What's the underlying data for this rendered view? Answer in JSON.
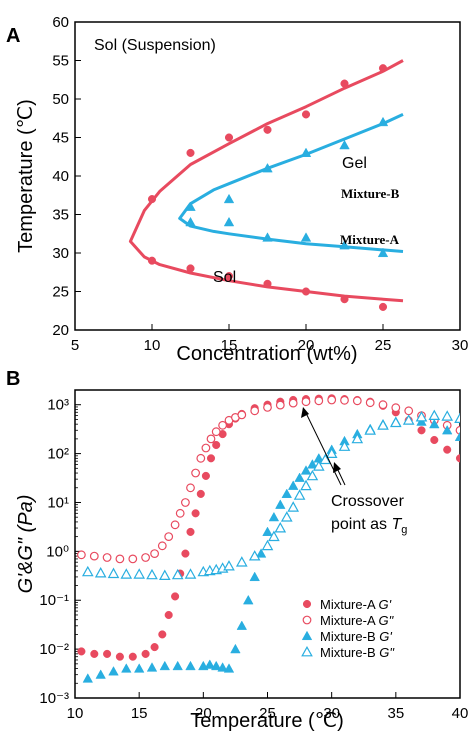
{
  "colors": {
    "mixture_a": "#e84a5f",
    "mixture_b": "#29aee0",
    "axis": "#000000"
  },
  "chart_data": [
    {
      "panel": "A",
      "type": "scatter",
      "xlabel": "Concentration (wt%)",
      "ylabel": "Temperature (℃)",
      "xlim": [
        5,
        30
      ],
      "ylim": [
        20,
        60
      ],
      "xticks": [
        5,
        10,
        15,
        20,
        25,
        30
      ],
      "yticks": [
        20,
        25,
        30,
        35,
        40,
        45,
        50,
        55,
        60
      ],
      "region_labels": {
        "sol_suspension": "Sol (Suspension)",
        "gel": "Gel",
        "sol": "Sol"
      },
      "series": [
        {
          "name": "Mixture-A",
          "marker": "circle",
          "points": [
            [
              10,
              37
            ],
            [
              10,
              29
            ],
            [
              12.5,
              43
            ],
            [
              12.5,
              28
            ],
            [
              15,
              45
            ],
            [
              15,
              27
            ],
            [
              17.5,
              46
            ],
            [
              17.5,
              26
            ],
            [
              20,
              48
            ],
            [
              20,
              25
            ],
            [
              22.5,
              52
            ],
            [
              22.5,
              24
            ],
            [
              25,
              54
            ],
            [
              25,
              23
            ]
          ],
          "fit_upper": [
            [
              8.6,
              31.5
            ],
            [
              9.5,
              35.5
            ],
            [
              10.5,
              38
            ],
            [
              12.5,
              41.5
            ],
            [
              15,
              44.2
            ],
            [
              17.5,
              46.8
            ],
            [
              20,
              49
            ],
            [
              22.5,
              51.4
            ],
            [
              25,
              53.6
            ],
            [
              26.3,
              55
            ]
          ],
          "fit_lower": [
            [
              8.6,
              31.5
            ],
            [
              9.5,
              29.5
            ],
            [
              10.5,
              28.5
            ],
            [
              12.5,
              27.4
            ],
            [
              15,
              26.4
            ],
            [
              17.5,
              25.6
            ],
            [
              20,
              25
            ],
            [
              22.5,
              24.4
            ],
            [
              25,
              24
            ],
            [
              26.3,
              23.8
            ]
          ]
        },
        {
          "name": "Mixture-B",
          "marker": "triangle",
          "points": [
            [
              12.5,
              36
            ],
            [
              12.5,
              34
            ],
            [
              15,
              37
            ],
            [
              15,
              34
            ],
            [
              17.5,
              41
            ],
            [
              17.5,
              32
            ],
            [
              20,
              43
            ],
            [
              20,
              32
            ],
            [
              22.5,
              44
            ],
            [
              22.5,
              31
            ],
            [
              25,
              47
            ],
            [
              25,
              30
            ]
          ],
          "fit_upper": [
            [
              11.8,
              34.5
            ],
            [
              12.5,
              36.4
            ],
            [
              14,
              38.2
            ],
            [
              15,
              39
            ],
            [
              17.5,
              41
            ],
            [
              20,
              42.8
            ],
            [
              22.5,
              44.8
            ],
            [
              25,
              46.8
            ],
            [
              26.3,
              48
            ]
          ],
          "fit_lower": [
            [
              11.8,
              34.5
            ],
            [
              12.5,
              33.5
            ],
            [
              14,
              32.8
            ],
            [
              15,
              32.5
            ],
            [
              17.5,
              31.8
            ],
            [
              20,
              31.2
            ],
            [
              22.5,
              30.8
            ],
            [
              25,
              30.4
            ],
            [
              26.3,
              30.2
            ]
          ]
        }
      ]
    },
    {
      "panel": "B",
      "type": "scatter",
      "xlabel": "Temperature (℃)",
      "ylabel": "G'&G\" (Pa)",
      "yscale": "log",
      "xlim": [
        10,
        40
      ],
      "ylim": [
        0.001,
        2000
      ],
      "xticks": [
        10,
        15,
        20,
        25,
        30,
        35,
        40
      ],
      "ytick_labels": [
        "10⁻³",
        "10⁻²",
        "10⁻¹",
        "10⁰",
        "10¹",
        "10²",
        "10³"
      ],
      "annotation": {
        "line1": "Crossover",
        "line2_prefix": "point as ",
        "line2_symbol": "T",
        "line2_sub": "g"
      },
      "legend": {
        "placement": "bottom-right",
        "items": [
          {
            "name": "Mixture-A ",
            "modulus": "G'"
          },
          {
            "name": "Mixture-A ",
            "modulus": "G\""
          },
          {
            "name": "Mixture-B ",
            "modulus": "G'"
          },
          {
            "name": "Mixture-B ",
            "modulus": "G\""
          }
        ]
      },
      "series": [
        {
          "key": "a_gp",
          "marker": "circle",
          "fill": true,
          "points": [
            [
              10.5,
              0.009
            ],
            [
              11.5,
              0.008
            ],
            [
              12.5,
              0.008
            ],
            [
              13.5,
              0.007
            ],
            [
              14.5,
              0.007
            ],
            [
              15.5,
              0.008
            ],
            [
              16.2,
              0.011
            ],
            [
              16.8,
              0.02
            ],
            [
              17.3,
              0.05
            ],
            [
              17.8,
              0.12
            ],
            [
              18.2,
              0.35
            ],
            [
              18.6,
              0.9
            ],
            [
              19,
              2.5
            ],
            [
              19.4,
              6
            ],
            [
              19.8,
              15
            ],
            [
              20.2,
              35
            ],
            [
              20.6,
              80
            ],
            [
              21,
              150
            ],
            [
              21.5,
              250
            ],
            [
              22,
              400
            ],
            [
              22.5,
              520
            ],
            [
              23,
              650
            ],
            [
              24,
              850
            ],
            [
              25,
              1000
            ],
            [
              26,
              1150
            ],
            [
              27,
              1250
            ],
            [
              28,
              1300
            ],
            [
              29,
              1330
            ],
            [
              30,
              1350
            ],
            [
              31,
              1300
            ],
            [
              32,
              1250
            ],
            [
              33,
              1150
            ],
            [
              34,
              950
            ],
            [
              35,
              700
            ],
            [
              36,
              480
            ],
            [
              37,
              300
            ],
            [
              38,
              190
            ],
            [
              39,
              120
            ],
            [
              40,
              80
            ],
            [
              40.5,
              60
            ]
          ]
        },
        {
          "key": "a_gpp",
          "marker": "circle",
          "fill": false,
          "points": [
            [
              10.5,
              0.85
            ],
            [
              11.5,
              0.8
            ],
            [
              12.5,
              0.75
            ],
            [
              13.5,
              0.7
            ],
            [
              14.5,
              0.7
            ],
            [
              15.5,
              0.75
            ],
            [
              16.2,
              0.9
            ],
            [
              16.8,
              1.3
            ],
            [
              17.3,
              2
            ],
            [
              17.8,
              3.5
            ],
            [
              18.2,
              6
            ],
            [
              18.6,
              10
            ],
            [
              19,
              20
            ],
            [
              19.4,
              40
            ],
            [
              19.8,
              80
            ],
            [
              20.2,
              130
            ],
            [
              20.6,
              200
            ],
            [
              21,
              280
            ],
            [
              21.5,
              380
            ],
            [
              22,
              480
            ],
            [
              22.5,
              550
            ],
            [
              23,
              620
            ],
            [
              24,
              750
            ],
            [
              25,
              880
            ],
            [
              26,
              980
            ],
            [
              27,
              1080
            ],
            [
              28,
              1150
            ],
            [
              29,
              1200
            ],
            [
              30,
              1250
            ],
            [
              31,
              1230
            ],
            [
              32,
              1200
            ],
            [
              33,
              1100
            ],
            [
              34,
              1000
            ],
            [
              35,
              870
            ],
            [
              36,
              750
            ],
            [
              37,
              600
            ],
            [
              38,
              480
            ],
            [
              39,
              380
            ],
            [
              40,
              300
            ],
            [
              40.5,
              250
            ]
          ]
        },
        {
          "key": "b_gp",
          "marker": "triangle",
          "fill": true,
          "points": [
            [
              11,
              0.0025
            ],
            [
              12,
              0.003
            ],
            [
              13,
              0.0035
            ],
            [
              14,
              0.004
            ],
            [
              15,
              0.004
            ],
            [
              16,
              0.0042
            ],
            [
              17,
              0.0045
            ],
            [
              18,
              0.0045
            ],
            [
              19,
              0.0045
            ],
            [
              20,
              0.0045
            ],
            [
              20.5,
              0.0048
            ],
            [
              21,
              0.0045
            ],
            [
              21.5,
              0.0042
            ],
            [
              22,
              0.004
            ],
            [
              22.5,
              0.01
            ],
            [
              23,
              0.03
            ],
            [
              23.5,
              0.1
            ],
            [
              24,
              0.3
            ],
            [
              24.5,
              0.9
            ],
            [
              25,
              2.5
            ],
            [
              25.5,
              5
            ],
            [
              26,
              9
            ],
            [
              26.5,
              15
            ],
            [
              27,
              22
            ],
            [
              27.5,
              32
            ],
            [
              28,
              45
            ],
            [
              28.5,
              60
            ],
            [
              29,
              80
            ],
            [
              30,
              120
            ],
            [
              31,
              180
            ],
            [
              32,
              250
            ],
            [
              33,
              320
            ],
            [
              34,
              400
            ],
            [
              35,
              450
            ],
            [
              36,
              480
            ],
            [
              37,
              450
            ],
            [
              38,
              400
            ],
            [
              39,
              300
            ],
            [
              40,
              220
            ],
            [
              40.5,
              170
            ]
          ]
        },
        {
          "key": "b_gpp",
          "marker": "triangle",
          "fill": false,
          "points": [
            [
              11,
              0.38
            ],
            [
              12,
              0.36
            ],
            [
              13,
              0.35
            ],
            [
              14,
              0.34
            ],
            [
              15,
              0.34
            ],
            [
              16,
              0.33
            ],
            [
              17,
              0.32
            ],
            [
              18,
              0.33
            ],
            [
              19,
              0.34
            ],
            [
              20,
              0.38
            ],
            [
              20.5,
              0.4
            ],
            [
              21,
              0.42
            ],
            [
              21.5,
              0.45
            ],
            [
              22,
              0.5
            ],
            [
              23,
              0.6
            ],
            [
              24,
              0.8
            ],
            [
              25,
              1.3
            ],
            [
              25.5,
              2
            ],
            [
              26,
              3
            ],
            [
              26.5,
              5
            ],
            [
              27,
              8
            ],
            [
              27.5,
              14
            ],
            [
              28,
              22
            ],
            [
              28.5,
              35
            ],
            [
              29,
              55
            ],
            [
              29.5,
              75
            ],
            [
              30,
              100
            ],
            [
              31,
              140
            ],
            [
              32,
              200
            ],
            [
              33,
              300
            ],
            [
              34,
              380
            ],
            [
              35,
              430
            ],
            [
              36,
              480
            ],
            [
              37,
              560
            ],
            [
              38,
              600
            ],
            [
              39,
              580
            ],
            [
              40,
              520
            ],
            [
              40.5,
              450
            ]
          ]
        }
      ]
    }
  ]
}
